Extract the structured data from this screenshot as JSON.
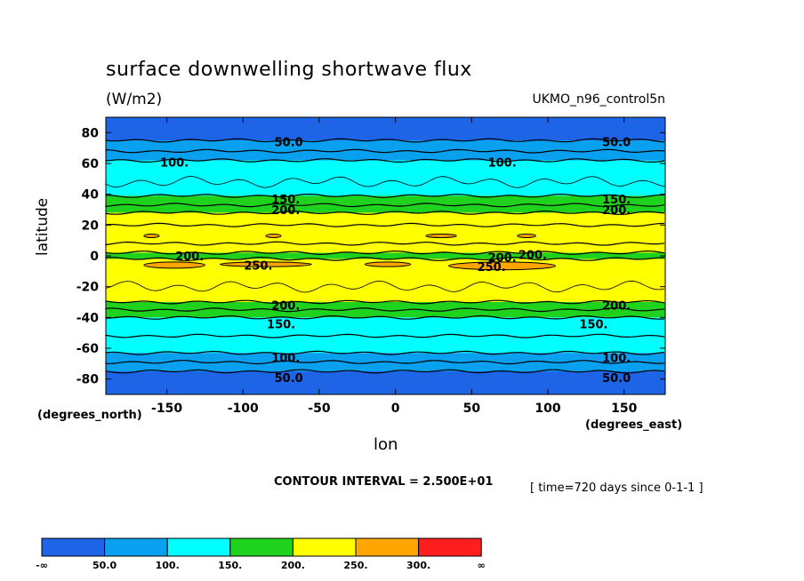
{
  "header": {
    "title": "surface downwelling shortwave flux",
    "units": "(W/m2)",
    "dataset": "UKMO_n96_control5n"
  },
  "axes": {
    "ylabel": "latitude",
    "xlabel": "lon",
    "y_unit": "(degrees_north)",
    "x_unit": "(degrees_east)"
  },
  "footer": {
    "contour_interval": "CONTOUR INTERVAL = 2.500E+01",
    "time": "[ time=720 days since 0-1-1 ]"
  },
  "chart_data": {
    "type": "heatmap",
    "subtype": "filled-contour",
    "title": "surface downwelling shortwave flux",
    "units": "(W/m2)",
    "xlabel": "lon",
    "ylabel": "latitude",
    "xlim": [
      -190,
      177
    ],
    "ylim": [
      -90,
      90
    ],
    "x_ticks": [
      -150,
      -100,
      -50,
      0,
      50,
      100,
      150
    ],
    "x_tick_labels": [
      "-150",
      "-100",
      "-50",
      "0",
      "50",
      "100",
      "150"
    ],
    "y_ticks": [
      -80,
      -60,
      -40,
      -20,
      0,
      20,
      40,
      60,
      80
    ],
    "y_tick_labels": [
      "-80",
      "-60",
      "-40",
      "-20",
      "0",
      "20",
      "40",
      "60",
      "80"
    ],
    "contour_interval": 25,
    "zonal_bands": [
      {
        "lat_from": 90,
        "lat_to": 75,
        "color": "#1e64e6"
      },
      {
        "lat_from": 75,
        "lat_to": 62,
        "color": "#0aa0f0"
      },
      {
        "lat_from": 62,
        "lat_to": 39,
        "color": "#00ffff"
      },
      {
        "lat_from": 39,
        "lat_to": 28,
        "color": "#1ed21e"
      },
      {
        "lat_from": 28,
        "lat_to": 2,
        "color": "#ffff00"
      },
      {
        "lat_from": 2,
        "lat_to": -2,
        "color": "#1ed21e"
      },
      {
        "lat_from": -2,
        "lat_to": -30,
        "color": "#ffff00"
      },
      {
        "lat_from": -30,
        "lat_to": -40,
        "color": "#1ed21e"
      },
      {
        "lat_from": -40,
        "lat_to": -63,
        "color": "#00ffff"
      },
      {
        "lat_from": -63,
        "lat_to": -75,
        "color": "#0aa0f0"
      },
      {
        "lat_from": -75,
        "lat_to": -90,
        "color": "#1e64e6"
      }
    ],
    "patches": [
      {
        "lon_from": -165,
        "lon_to": -155,
        "lat_from": 14,
        "lat_to": 12,
        "color": "#ffa500"
      },
      {
        "lon_from": -85,
        "lon_to": -75,
        "lat_from": 14,
        "lat_to": 12,
        "color": "#ffa500"
      },
      {
        "lon_from": 20,
        "lon_to": 40,
        "lat_from": 14,
        "lat_to": 12,
        "color": "#ffa500"
      },
      {
        "lon_from": 80,
        "lon_to": 92,
        "lat_from": 14,
        "lat_to": 12,
        "color": "#ffa500"
      },
      {
        "lon_from": -165,
        "lon_to": -125,
        "lat_from": -4,
        "lat_to": -8,
        "color": "#ffa500"
      },
      {
        "lon_from": -115,
        "lon_to": -55,
        "lat_from": -4,
        "lat_to": -7,
        "color": "#ffa500"
      },
      {
        "lon_from": -20,
        "lon_to": 10,
        "lat_from": -4,
        "lat_to": -7,
        "color": "#ffa500"
      },
      {
        "lon_from": 35,
        "lon_to": 105,
        "lat_from": -4,
        "lat_to": -9,
        "color": "#ffa500"
      }
    ],
    "contour_lines": [
      {
        "lat": 75
      },
      {
        "lat": 68
      },
      {
        "lat": 62
      },
      {
        "lat": 48,
        "wavy": true
      },
      {
        "lat": 39
      },
      {
        "lat": 33
      },
      {
        "lat": 28
      },
      {
        "lat": 20
      },
      {
        "lat": 8
      },
      {
        "lat": 2
      },
      {
        "lat": -2
      },
      {
        "lat": -20,
        "wavy": true
      },
      {
        "lat": -30
      },
      {
        "lat": -35
      },
      {
        "lat": -40
      },
      {
        "lat": -52
      },
      {
        "lat": -63
      },
      {
        "lat": -69
      },
      {
        "lat": -75
      }
    ],
    "contour_labels": [
      {
        "lon": -70,
        "lat": 74,
        "text": "50.0"
      },
      {
        "lon": 145,
        "lat": 74,
        "text": "50.0"
      },
      {
        "lon": -145,
        "lat": 61,
        "text": "100."
      },
      {
        "lon": 70,
        "lat": 61,
        "text": "100."
      },
      {
        "lon": -72,
        "lat": 37,
        "text": "150."
      },
      {
        "lon": 145,
        "lat": 37,
        "text": "150."
      },
      {
        "lon": -72,
        "lat": 30,
        "text": "200."
      },
      {
        "lon": 145,
        "lat": 30,
        "text": "200."
      },
      {
        "lon": -135,
        "lat": 0,
        "text": "200."
      },
      {
        "lon": 70,
        "lat": -1,
        "text": "200."
      },
      {
        "lon": 90,
        "lat": 1,
        "text": "200."
      },
      {
        "lon": -90,
        "lat": -6,
        "text": "250."
      },
      {
        "lon": 63,
        "lat": -7,
        "text": "250."
      },
      {
        "lon": -72,
        "lat": -32,
        "text": "200."
      },
      {
        "lon": 145,
        "lat": -32,
        "text": "200."
      },
      {
        "lon": -75,
        "lat": -44,
        "text": "150."
      },
      {
        "lon": 130,
        "lat": -44,
        "text": "150."
      },
      {
        "lon": -72,
        "lat": -66,
        "text": "100."
      },
      {
        "lon": 145,
        "lat": -66,
        "text": "100."
      },
      {
        "lon": -70,
        "lat": -79,
        "text": "50.0"
      },
      {
        "lon": 145,
        "lat": -79,
        "text": "50.0"
      }
    ],
    "colorbar": {
      "colors": [
        "#1e64e6",
        "#0aa0f0",
        "#00ffff",
        "#1ed21e",
        "#ffff00",
        "#ffa500",
        "#ff1e1e"
      ],
      "labels": [
        "-∞",
        "50.0",
        "100.",
        "150.",
        "200.",
        "250.",
        "300.",
        "∞"
      ]
    }
  }
}
